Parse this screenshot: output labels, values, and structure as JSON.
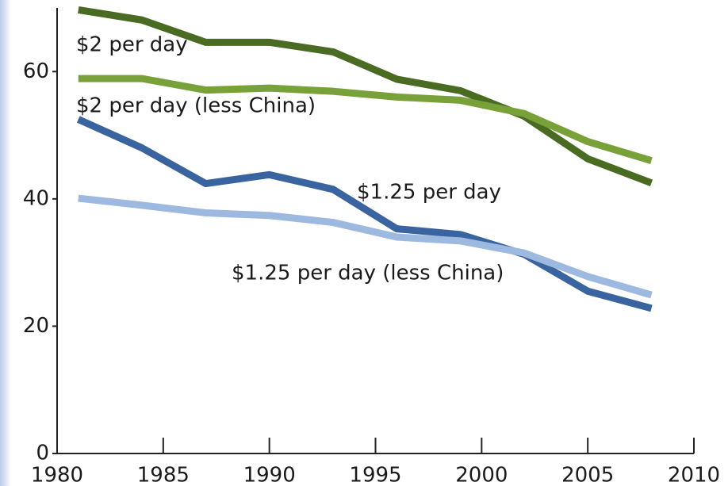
{
  "chart_data": {
    "type": "line",
    "x": [
      1981,
      1984,
      1987,
      1990,
      1993,
      1996,
      1999,
      2002,
      2005,
      2008
    ],
    "series": [
      {
        "name": "$2 per day",
        "color": "#4a6b22",
        "values": [
          69.7,
          68.1,
          64.6,
          64.6,
          63.1,
          58.8,
          57.0,
          53.0,
          46.3,
          42.5
        ]
      },
      {
        "name": "$2 per day (less China)",
        "color": "#78a13a",
        "values": [
          58.9,
          58.9,
          57.1,
          57.4,
          56.9,
          56.0,
          55.5,
          53.4,
          49.0,
          46.0
        ]
      },
      {
        "name": "$1.25 per day",
        "color": "#3a64a0",
        "values": [
          52.5,
          48.0,
          42.4,
          43.8,
          41.5,
          35.3,
          34.4,
          31.3,
          25.5,
          22.8
        ]
      },
      {
        "name": "$1.25 per day (less China)",
        "color": "#9db9e0",
        "values": [
          40.1,
          39.0,
          37.8,
          37.4,
          36.3,
          34.0,
          33.4,
          31.5,
          27.8,
          24.9
        ]
      }
    ],
    "xlim": [
      1980,
      2010
    ],
    "xticks": [
      1980,
      1985,
      1990,
      1995,
      2000,
      2005,
      2010
    ],
    "ylim": [
      0,
      70
    ],
    "yticks": [
      0,
      20,
      40,
      60
    ],
    "grid": false
  }
}
